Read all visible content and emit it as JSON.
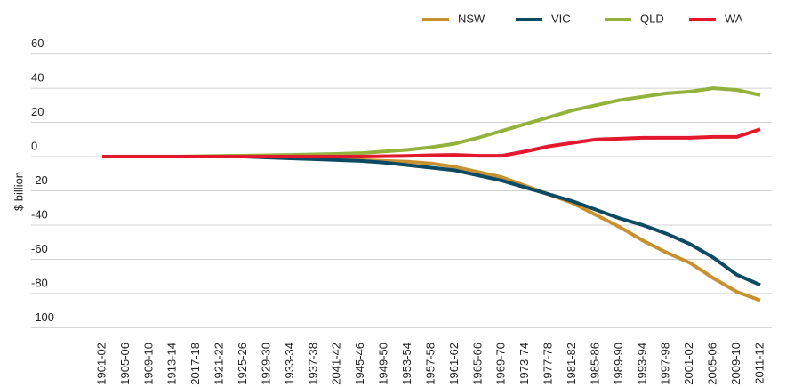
{
  "chart_data": {
    "type": "line",
    "y_label": "$ billion",
    "categories": [
      "1901-02",
      "1905-06",
      "1909-10",
      "1913-14",
      "2017-18",
      "1921-22",
      "1925-26",
      "1929-30",
      "1933-34",
      "1937-38",
      "2041-42",
      "1945-46",
      "1949-50",
      "1953-54",
      "1957-58",
      "1961-62",
      "1965-66",
      "1969-70",
      "1973-74",
      "1977-78",
      "1981-82",
      "1985-86",
      "1989-90",
      "1993-94",
      "1997-98",
      "2001-02",
      "2005-06",
      "2009-10",
      "2011-12"
    ],
    "series": [
      {
        "name": "NSW",
        "color": "#c8912f",
        "values": [
          0,
          0,
          0,
          0,
          0,
          0,
          0,
          0,
          -0.5,
          -1,
          -1.5,
          -2,
          -2.5,
          -3,
          -4,
          -6,
          -9,
          -12,
          -17,
          -22,
          -27,
          -34,
          -41,
          -49,
          -56,
          -62,
          -71,
          -79,
          -84
        ]
      },
      {
        "name": "VIC",
        "color": "#0b4a63",
        "values": [
          0,
          0,
          0,
          0,
          0,
          0,
          0,
          -0.5,
          -1,
          -1.5,
          -2,
          -2.5,
          -3.5,
          -5,
          -6.5,
          -8,
          -11,
          -14,
          -18,
          -22,
          -26,
          -31,
          -36,
          -40,
          -45,
          -51,
          -59,
          -69,
          -75
        ]
      },
      {
        "name": "QLD",
        "color": "#93b23b",
        "values": [
          0,
          0,
          0,
          0,
          0.2,
          0.4,
          0.6,
          0.8,
          1,
          1.3,
          1.6,
          2,
          3,
          4,
          5.5,
          7.5,
          11,
          15,
          19,
          23,
          27,
          30,
          33,
          35,
          37,
          38,
          40,
          39,
          36
        ]
      },
      {
        "name": "WA",
        "color": "#e3182d",
        "values": [
          0,
          0,
          0,
          0,
          0,
          0,
          0,
          0,
          0,
          0,
          0,
          0,
          0.2,
          0.4,
          0.8,
          1,
          0.5,
          0.5,
          3,
          6,
          8,
          10,
          10.5,
          11,
          11,
          11,
          11.5,
          11.5,
          16
        ]
      }
    ],
    "ylim": [
      -105,
      65
    ],
    "yticks": [
      -100,
      -80,
      -60,
      -40,
      -20,
      0,
      20,
      40,
      60
    ],
    "grid": true,
    "legend": "top-right"
  }
}
